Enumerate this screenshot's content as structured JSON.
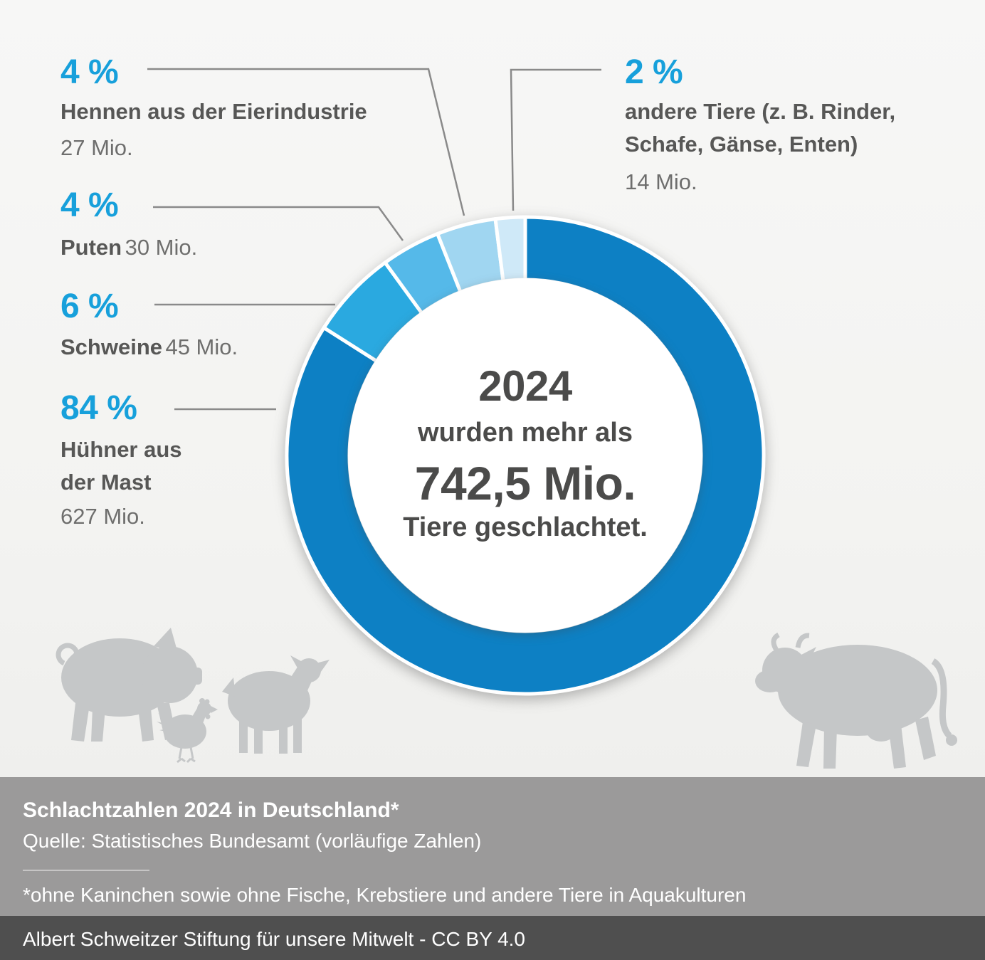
{
  "chart_data": {
    "type": "donut",
    "title": "Schlachtzahlen 2024 in Deutschland*",
    "center_label_lines": [
      "2024",
      "wurden mehr als",
      "742,5 Mio.",
      "Tiere geschlachtet."
    ],
    "unit": "Mio. Tiere",
    "slices": [
      {
        "key": "huehner",
        "label": "Hühner aus der Mast",
        "percent": 84,
        "count": "627 Mio.",
        "color": "#0d80c4"
      },
      {
        "key": "schweine",
        "label": "Schweine",
        "percent": 6,
        "count": "45 Mio.",
        "color": "#2aa9e0"
      },
      {
        "key": "puten",
        "label": "Puten",
        "percent": 4,
        "count": "30 Mio.",
        "color": "#55b9e9"
      },
      {
        "key": "hennen",
        "label": "Hennen aus der Eierindustrie",
        "percent": 4,
        "count": "27 Mio.",
        "color": "#a0d6f1"
      },
      {
        "key": "andere",
        "label": "andere Tiere (z. B. Rinder, Schafe, Gänse, Enten)",
        "percent": 2,
        "count": "14 Mio.",
        "color": "#cfe9f8"
      }
    ],
    "legend_position": "callouts"
  },
  "colors": {
    "accent_blue": "#17a0db",
    "label_bold_gray": "#575756",
    "label_regular_gray": "#6e6e6d",
    "center_text_gray": "#4b4b4a",
    "leader_line_gray": "#8a8a8a",
    "silhouette_gray": "#c5c7c8",
    "footer_band_gray": "#9b9a9a",
    "footer_bar_dark_gray": "#4f4f4f"
  },
  "callouts": {
    "hennen": {
      "percent": "4 %",
      "name": "Hennen aus der Eierindustrie",
      "amount": "27 Mio."
    },
    "puten": {
      "percent": "4 %",
      "name": "Puten",
      "amount": "30 Mio."
    },
    "schweine": {
      "percent": "6 %",
      "name": "Schweine",
      "amount": "45 Mio."
    },
    "huehner": {
      "percent": "84 %",
      "name_line1": "Hühner aus",
      "name_line2": "der Mast",
      "amount": "627 Mio."
    },
    "andere": {
      "percent": "2 %",
      "name_line1": "andere Tiere (z. B. Rinder,",
      "name_line2": "Schafe, Gänse, Enten)",
      "amount": "14 Mio."
    }
  },
  "center": {
    "line1": "2024",
    "line2": "wurden mehr als",
    "line3": "742,5 Mio.",
    "line4": "Tiere geschlachtet."
  },
  "footer": {
    "title": "Schlachtzahlen 2024 in Deutschland*",
    "source": "Quelle: Statistisches Bundesamt (vorläufige Zahlen)",
    "footnote": "*ohne Kaninchen sowie ohne Fische, Krebstiere und andere Tiere in Aquakulturen",
    "credit": "Albert Schweitzer Stiftung für unsere Mitwelt - CC BY 4.0"
  }
}
